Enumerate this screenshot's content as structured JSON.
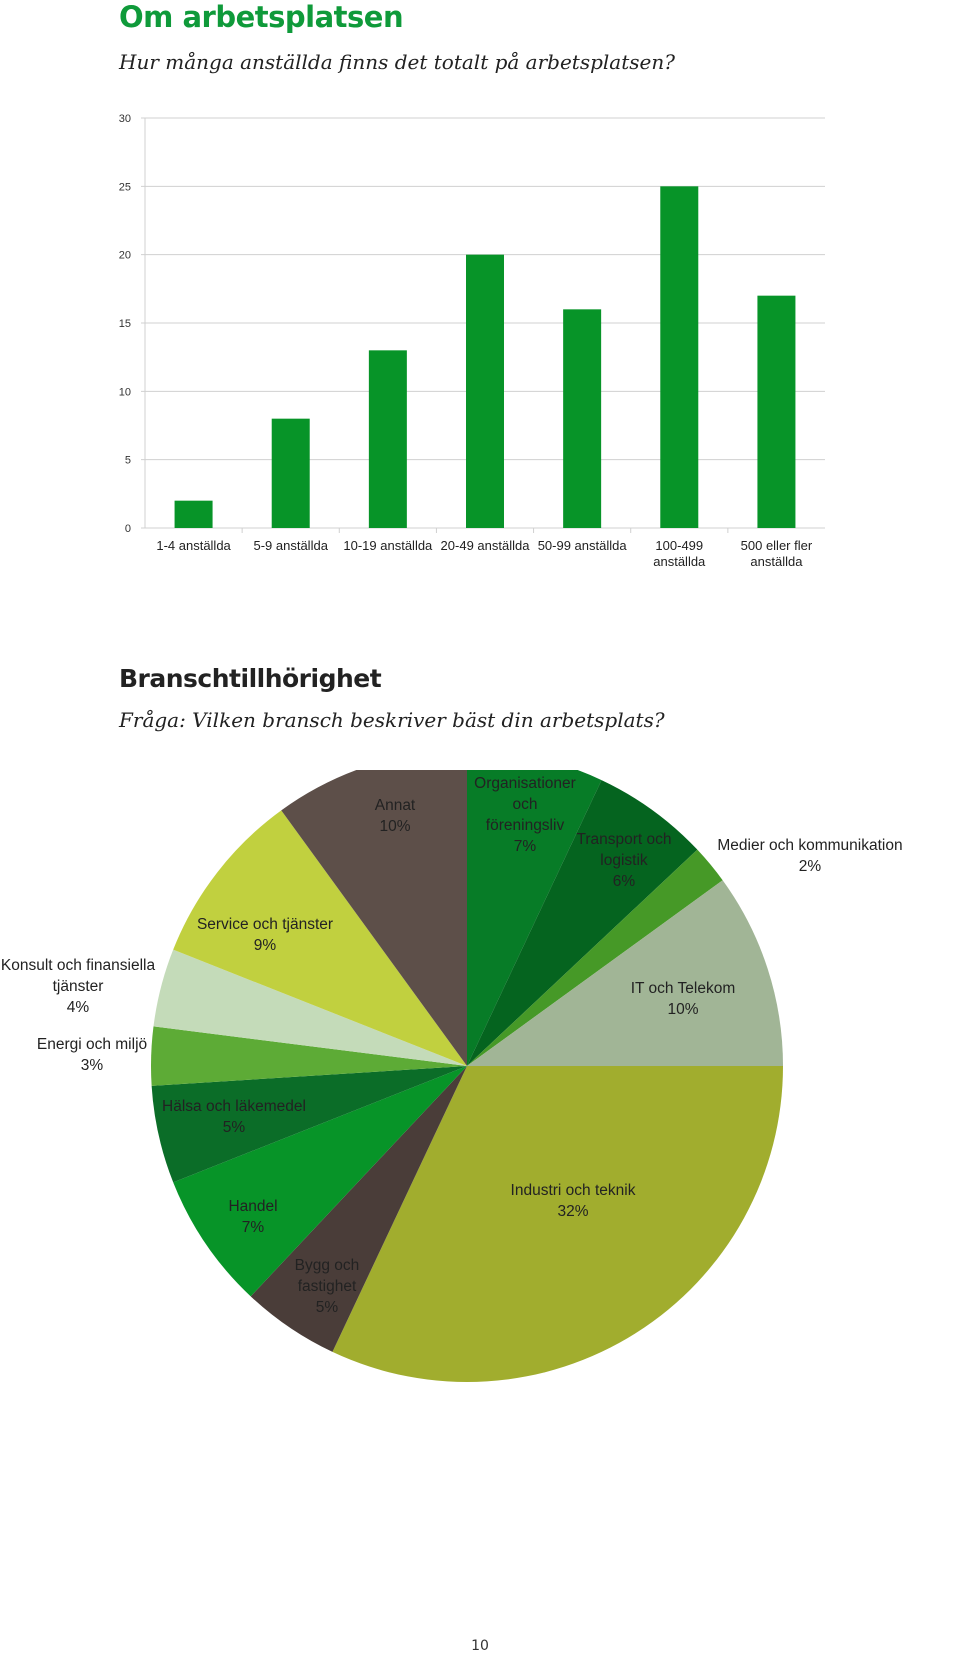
{
  "section1": {
    "title": "Om arbetsplatsen",
    "question": "Hur många anställda finns det totalt på arbetsplatsen?"
  },
  "section2": {
    "title": "Branschtillhörighet",
    "question": "Fråga: Vilken bransch beskriver bäst din arbetsplats?"
  },
  "page_number": "10",
  "colors": {
    "bar": "#079428",
    "grid": "#d0d0d0",
    "pie": {
      "Organisationer och föreningsliv": "#077c27",
      "Transport och logistik": "#05641f",
      "Medier och kommunikation": "#469927",
      "IT och Telekom": "#a1b596",
      "Industri och teknik": "#a1ad2e",
      "Bygg och fastighet": "#4a3d39",
      "Handel": "#079428",
      "Hälsa och läkemedel": "#0b6d28",
      "Energi och miljö": "#5dab36",
      "Konsult och finansiella tjänster": "#c4dbb9",
      "Service och tjänster": "#c1d03f",
      "Annat": "#5d4f49"
    }
  },
  "chart_data": [
    {
      "type": "bar",
      "categories": [
        "1-4 anställda",
        "5-9 anställda",
        "10-19 anställda",
        "20-49 anställda",
        "50-99 anställda",
        "100-499 anställda",
        "500 eller fler anställda"
      ],
      "values": [
        2,
        8,
        13,
        20,
        16,
        25,
        17
      ],
      "yticks": [
        0,
        5,
        10,
        15,
        20,
        25,
        30
      ],
      "ylim": [
        0,
        30
      ],
      "grid": true,
      "title": "",
      "xlabel": "",
      "ylabel": ""
    },
    {
      "type": "pie",
      "start": "12 o'clock",
      "direction": "clockwise",
      "slices": [
        {
          "label": "Organisationer och föreningsliv",
          "lines": [
            "Organisationer",
            "och",
            "föreningsliv",
            "7%"
          ],
          "value": 7
        },
        {
          "label": "Transport och logistik",
          "lines": [
            "Transport och",
            "logistik",
            "6%"
          ],
          "value": 6
        },
        {
          "label": "Medier och kommunikation",
          "lines": [
            "Medier och kommunikation",
            "2%"
          ],
          "value": 2
        },
        {
          "label": "IT och Telekom",
          "lines": [
            "IT och Telekom",
            "10%"
          ],
          "value": 10
        },
        {
          "label": "Industri och teknik",
          "lines": [
            "Industri och teknik",
            "32%"
          ],
          "value": 32
        },
        {
          "label": "Bygg och fastighet",
          "lines": [
            "Bygg och",
            "fastighet",
            "5%"
          ],
          "value": 5
        },
        {
          "label": "Handel",
          "lines": [
            "Handel",
            "7%"
          ],
          "value": 7
        },
        {
          "label": "Hälsa och läkemedel",
          "lines": [
            "Hälsa och läkemedel",
            "5%"
          ],
          "value": 5
        },
        {
          "label": "Energi och miljö",
          "lines": [
            "Energi och miljö",
            "3%"
          ],
          "value": 3
        },
        {
          "label": "Konsult och finansiella tjänster",
          "lines": [
            "Konsult och finansiella",
            "tjänster",
            "4%"
          ],
          "value": 4
        },
        {
          "label": "Service och tjänster",
          "lines": [
            "Service och tjänster",
            "9%"
          ],
          "value": 9
        },
        {
          "label": "Annat",
          "lines": [
            "Annat",
            "10%"
          ],
          "value": 10
        }
      ]
    }
  ]
}
